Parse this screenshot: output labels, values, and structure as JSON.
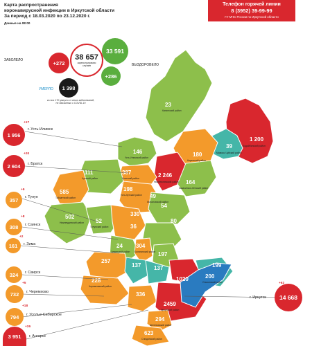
{
  "header": {
    "title_lines": [
      "Карта распространения",
      "коронавирусной инфекции в Иркутской области",
      "За период с 18.03.2020 по 23.12.2020 г."
    ],
    "as_of": "Данные на 08:00"
  },
  "hotline": {
    "title": "Телефон горячей линии",
    "phone": "8 (3952) 39-99-99",
    "org": "ГУ МЧС России по Иркутской области"
  },
  "summary": {
    "total": "38 657",
    "total_caption": "зарегистрировано случаев",
    "sick_label": "ЗАБОЛЕЛО",
    "sick_delta": "+272",
    "recovered_label": "ВЫЗДОРОВЕЛО",
    "recovered": "33 591",
    "recovered_delta": "+286",
    "died_label": "УМЕРЛО",
    "died": "1 398",
    "died_note": "из них 170 умерло от иных заболеваний, не связанных с COVID-19"
  },
  "colors": {
    "red": "#d9272e",
    "orange": "#f39a2b",
    "green": "#8dbf4b",
    "teal": "#45b6a8",
    "dark": "#1a1a1a"
  },
  "cities": [
    {
      "name": "г. Усть-Илимск",
      "count": "1 956",
      "delta": "+17"
    },
    {
      "name": "г. Братск",
      "count": "2 604",
      "delta": "+20"
    },
    {
      "name": "г. Тулун",
      "count": "357",
      "delta": "+9"
    },
    {
      "name": "г. Саянск",
      "count": "308",
      "delta": "+8"
    },
    {
      "name": "г. Зима",
      "count": "161",
      "delta": "+2"
    },
    {
      "name": "г. Свирск",
      "count": "324",
      "delta": ""
    },
    {
      "name": "г. Черемхово",
      "count": "732",
      "delta": "+5"
    },
    {
      "name": "г. Усолье-Сибирское",
      "count": "794",
      "delta": "+18"
    },
    {
      "name": "г. Ангарск",
      "count": "3 951",
      "delta": "+26"
    }
  ],
  "irkutsk": {
    "name": "г. Иркутск",
    "count": "14 668",
    "delta": "+62"
  },
  "region_numbers": [
    {
      "value": "23",
      "district": "Катангский район"
    },
    {
      "value": "1 200",
      "district": "Бодайбинский район"
    },
    {
      "value": "39",
      "district": "Мамско-Чуйский район"
    },
    {
      "value": "180",
      "district": "Киренский район"
    },
    {
      "value": "146",
      "district": "Усть-Илимский район"
    },
    {
      "value": "111",
      "district": "Чунский район"
    },
    {
      "value": "387",
      "district": "Братский район"
    },
    {
      "value": "2 246",
      "district": "Нижнеилимский район"
    },
    {
      "value": "164",
      "district": "Казачинско-Ленский район"
    },
    {
      "value": "585",
      "district": "Тайшетский район"
    },
    {
      "value": "198",
      "district": "Усть-Кутский район"
    },
    {
      "value": "49",
      "district": "Жигаловский район"
    },
    {
      "value": "54",
      "district": ""
    },
    {
      "value": "80",
      "district": ""
    },
    {
      "value": "502",
      "district": "Нижнеудинский район"
    },
    {
      "value": "330",
      "district": ""
    },
    {
      "value": "52",
      "district": "Тулунский район"
    },
    {
      "value": "36",
      "district": ""
    },
    {
      "value": "24",
      "district": "Зиминский район"
    },
    {
      "value": "304",
      "district": "Балаганский район"
    },
    {
      "value": "197",
      "district": ""
    },
    {
      "value": "257",
      "district": ""
    },
    {
      "value": "137",
      "district": ""
    },
    {
      "value": "137",
      "district": ""
    },
    {
      "value": "228",
      "district": "Черемховский район"
    },
    {
      "value": "199",
      "district": ""
    },
    {
      "value": "1020",
      "district": ""
    },
    {
      "value": "200",
      "district": "Ольхонский район"
    },
    {
      "value": "336",
      "district": ""
    },
    {
      "value": "2459",
      "district": "Иркутский район"
    },
    {
      "value": "294",
      "district": "Шелеховский район"
    },
    {
      "value": "623",
      "district": "Слюдянский район"
    }
  ]
}
